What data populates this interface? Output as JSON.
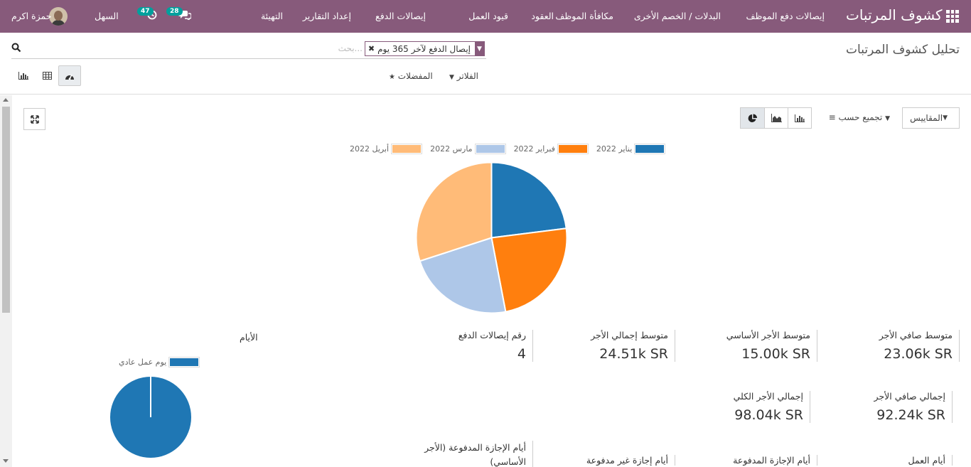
{
  "app": {
    "title": "كشوف المرتبات",
    "apps_icon": "grid-icon"
  },
  "nav": {
    "items": [
      "إيصالات دفع الموظف",
      "البدلات / الخصم الأخرى",
      "مكافأة الموظف",
      "العقود",
      "قيود العمل",
      "إيصالات الدفع",
      "إعداد التقارير",
      "التهيئة"
    ]
  },
  "systray": {
    "messages_count": "28",
    "activities_count": "47",
    "company": "السهل",
    "user": "حمزة اكرم"
  },
  "control": {
    "title": "تحليل كشوف المرتبات",
    "search_placeholder": "بحث...",
    "facet_label": "إيصال الدفع لآخر 365 يوم",
    "filters_label": "الفلاتر",
    "favorites_label": "المفضلات"
  },
  "toolbar": {
    "measures_label": "المقاييس",
    "groupby_label": "تجميع حسب"
  },
  "chart_data": [
    {
      "type": "pie",
      "categories": [
        "يناير 2022",
        "فبراير 2022",
        "مارس 2022",
        "أبريل 2022"
      ],
      "values": [
        23,
        24,
        23,
        30
      ],
      "colors": [
        "#1f77b4",
        "#ff7f0e",
        "#aec7e8",
        "#ffbb78"
      ]
    },
    {
      "type": "pie",
      "title": "الأيام",
      "categories": [
        "يوم عمل عادي"
      ],
      "values": [
        100
      ],
      "colors": [
        "#1f77b4"
      ]
    }
  ],
  "kpis": [
    {
      "label": "متوسط صافي الأجر",
      "value": "23.06k SR"
    },
    {
      "label": "متوسط الأجر الأساسي",
      "value": "15.00k SR"
    },
    {
      "label": "متوسط إجمالي الأجر",
      "value": "24.51k SR"
    },
    {
      "label": "رقم إيصالات الدفع",
      "value": "4"
    },
    {
      "label": "إجمالي صافي الأجر",
      "value": "92.24k SR"
    },
    {
      "label": "إجمالي الأجر الكلي",
      "value": "98.04k SR"
    }
  ],
  "kpi_labels_row3": [
    "أيام العمل",
    "أيام الإجازة المدفوعة",
    "أيام إجازة غير مدفوعة",
    "أيام الإجازة المدفوعة (الأجر الأساسي)"
  ]
}
